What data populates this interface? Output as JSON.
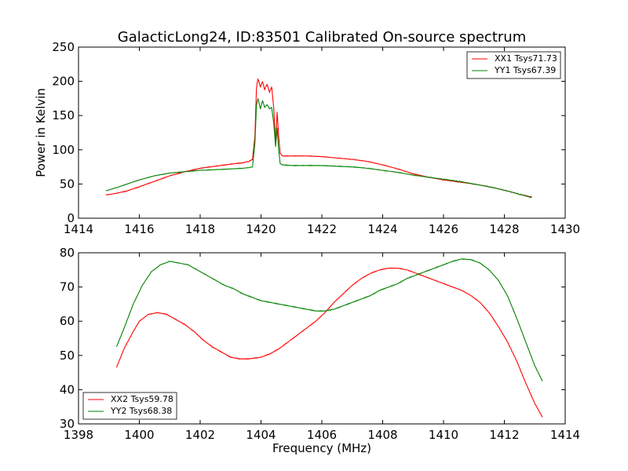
{
  "chart_data": [
    {
      "type": "line",
      "title": "GalacticLong24, ID:83501 Calibrated On-source spectrum",
      "xlabel": "",
      "ylabel": "Power in Kelvin",
      "xlim": [
        1414,
        1430
      ],
      "ylim": [
        0,
        250
      ],
      "xticks": [
        1414,
        1416,
        1418,
        1420,
        1422,
        1424,
        1426,
        1428,
        1430
      ],
      "yticks": [
        0,
        50,
        100,
        150,
        200,
        250
      ],
      "legend": "top-right",
      "series": [
        {
          "name": "XX1 Tsys71.73",
          "color": "#ff0000",
          "points": [
            [
              1414.9,
              34
            ],
            [
              1415.2,
              36
            ],
            [
              1415.6,
              40
            ],
            [
              1416.0,
              46
            ],
            [
              1416.5,
              54
            ],
            [
              1417.0,
              62
            ],
            [
              1417.5,
              68
            ],
            [
              1418.0,
              73
            ],
            [
              1418.5,
              76
            ],
            [
              1419.0,
              79
            ],
            [
              1419.4,
              81
            ],
            [
              1419.6,
              83
            ],
            [
              1419.72,
              86
            ],
            [
              1419.8,
              120
            ],
            [
              1419.85,
              190
            ],
            [
              1419.9,
              204
            ],
            [
              1419.98,
              192
            ],
            [
              1420.05,
              200
            ],
            [
              1420.12,
              188
            ],
            [
              1420.2,
              196
            ],
            [
              1420.28,
              184
            ],
            [
              1420.35,
              192
            ],
            [
              1420.42,
              160
            ],
            [
              1420.48,
              110
            ],
            [
              1420.53,
              155
            ],
            [
              1420.58,
              120
            ],
            [
              1420.63,
              95
            ],
            [
              1420.7,
              91
            ],
            [
              1421.0,
              91
            ],
            [
              1421.5,
              91
            ],
            [
              1422.0,
              90
            ],
            [
              1422.5,
              88
            ],
            [
              1423.0,
              86
            ],
            [
              1423.5,
              83
            ],
            [
              1424.0,
              78
            ],
            [
              1424.5,
              72
            ],
            [
              1425.0,
              65
            ],
            [
              1425.5,
              60
            ],
            [
              1426.0,
              56
            ],
            [
              1426.5,
              53
            ],
            [
              1427.0,
              50
            ],
            [
              1427.5,
              46
            ],
            [
              1428.0,
              41
            ],
            [
              1428.5,
              35
            ],
            [
              1428.9,
              31
            ]
          ]
        },
        {
          "name": "YY1 Tsys67.39",
          "color": "#008000",
          "points": [
            [
              1414.9,
              40
            ],
            [
              1415.2,
              44
            ],
            [
              1415.6,
              50
            ],
            [
              1416.0,
              56
            ],
            [
              1416.5,
              62
            ],
            [
              1417.0,
              66
            ],
            [
              1417.5,
              68
            ],
            [
              1418.0,
              70
            ],
            [
              1418.5,
              71
            ],
            [
              1419.0,
              72
            ],
            [
              1419.4,
              73
            ],
            [
              1419.6,
              74
            ],
            [
              1419.72,
              75
            ],
            [
              1419.8,
              110
            ],
            [
              1419.85,
              165
            ],
            [
              1419.9,
              175
            ],
            [
              1419.98,
              160
            ],
            [
              1420.05,
              172
            ],
            [
              1420.12,
              162
            ],
            [
              1420.2,
              166
            ],
            [
              1420.28,
              160
            ],
            [
              1420.35,
              162
            ],
            [
              1420.42,
              138
            ],
            [
              1420.48,
              105
            ],
            [
              1420.53,
              132
            ],
            [
              1420.58,
              100
            ],
            [
              1420.63,
              80
            ],
            [
              1420.7,
              78
            ],
            [
              1421.0,
              77
            ],
            [
              1421.5,
              77
            ],
            [
              1422.0,
              77
            ],
            [
              1422.5,
              76
            ],
            [
              1423.0,
              75
            ],
            [
              1423.5,
              73
            ],
            [
              1424.0,
              70
            ],
            [
              1424.5,
              67
            ],
            [
              1425.0,
              63
            ],
            [
              1425.5,
              60
            ],
            [
              1426.0,
              57
            ],
            [
              1426.5,
              54
            ],
            [
              1427.0,
              50
            ],
            [
              1427.5,
              46
            ],
            [
              1428.0,
              41
            ],
            [
              1428.5,
              35
            ],
            [
              1428.9,
              30
            ]
          ]
        }
      ]
    },
    {
      "type": "line",
      "title": "",
      "xlabel": "Frequency (MHz)",
      "ylabel": "",
      "xlim": [
        1398,
        1414
      ],
      "ylim": [
        30,
        80
      ],
      "xticks": [
        1398,
        1400,
        1402,
        1404,
        1406,
        1408,
        1410,
        1412,
        1414
      ],
      "yticks": [
        30,
        40,
        50,
        60,
        70,
        80
      ],
      "legend": "bottom-left",
      "series": [
        {
          "name": "XX2 Tsys59.78",
          "color": "#ff0000",
          "points": [
            [
              1399.25,
              46.5
            ],
            [
              1399.5,
              52
            ],
            [
              1399.8,
              57
            ],
            [
              1400.0,
              60
            ],
            [
              1400.3,
              62
            ],
            [
              1400.6,
              62.5
            ],
            [
              1400.9,
              62
            ],
            [
              1401.2,
              60.5
            ],
            [
              1401.5,
              59
            ],
            [
              1401.8,
              57
            ],
            [
              1402.1,
              54.5
            ],
            [
              1402.4,
              52.5
            ],
            [
              1402.7,
              51
            ],
            [
              1403.0,
              49.5
            ],
            [
              1403.3,
              49
            ],
            [
              1403.6,
              49
            ],
            [
              1404.0,
              49.5
            ],
            [
              1404.3,
              50.5
            ],
            [
              1404.6,
              52
            ],
            [
              1404.9,
              54
            ],
            [
              1405.2,
              56
            ],
            [
              1405.5,
              58
            ],
            [
              1405.8,
              60
            ],
            [
              1406.1,
              62.5
            ],
            [
              1406.4,
              65.5
            ],
            [
              1406.7,
              68
            ],
            [
              1407.0,
              70.5
            ],
            [
              1407.3,
              72.5
            ],
            [
              1407.6,
              74
            ],
            [
              1407.9,
              75
            ],
            [
              1408.2,
              75.5
            ],
            [
              1408.5,
              75.5
            ],
            [
              1408.8,
              75
            ],
            [
              1409.1,
              74
            ],
            [
              1409.4,
              73
            ],
            [
              1409.7,
              72
            ],
            [
              1410.0,
              71
            ],
            [
              1410.3,
              70
            ],
            [
              1410.6,
              69
            ],
            [
              1410.9,
              67.5
            ],
            [
              1411.2,
              65.5
            ],
            [
              1411.5,
              62.5
            ],
            [
              1411.8,
              58.5
            ],
            [
              1412.1,
              54
            ],
            [
              1412.4,
              48.5
            ],
            [
              1412.7,
              42
            ],
            [
              1413.0,
              36
            ],
            [
              1413.25,
              32
            ]
          ]
        },
        {
          "name": "YY2 Tsys68.38",
          "color": "#008000",
          "points": [
            [
              1399.25,
              52.5
            ],
            [
              1399.5,
              58
            ],
            [
              1399.8,
              65
            ],
            [
              1400.1,
              70.5
            ],
            [
              1400.4,
              74.5
            ],
            [
              1400.7,
              76.5
            ],
            [
              1401.0,
              77.5
            ],
            [
              1401.3,
              77
            ],
            [
              1401.6,
              76.5
            ],
            [
              1401.9,
              75
            ],
            [
              1402.2,
              73.5
            ],
            [
              1402.5,
              72
            ],
            [
              1402.8,
              70.5
            ],
            [
              1403.1,
              69.5
            ],
            [
              1403.4,
              68
            ],
            [
              1403.7,
              67
            ],
            [
              1404.0,
              66
            ],
            [
              1404.3,
              65.5
            ],
            [
              1404.6,
              65
            ],
            [
              1404.9,
              64.5
            ],
            [
              1405.2,
              64
            ],
            [
              1405.5,
              63.5
            ],
            [
              1405.8,
              63
            ],
            [
              1406.1,
              63
            ],
            [
              1406.4,
              63.5
            ],
            [
              1406.7,
              64.5
            ],
            [
              1407.0,
              65.5
            ],
            [
              1407.3,
              66.5
            ],
            [
              1407.6,
              67.5
            ],
            [
              1407.9,
              69
            ],
            [
              1408.2,
              70
            ],
            [
              1408.5,
              71
            ],
            [
              1408.8,
              72.5
            ],
            [
              1409.1,
              73.5
            ],
            [
              1409.4,
              74.5
            ],
            [
              1409.7,
              75.5
            ],
            [
              1410.0,
              76.5
            ],
            [
              1410.3,
              77.5
            ],
            [
              1410.6,
              78.2
            ],
            [
              1410.9,
              78
            ],
            [
              1411.2,
              77
            ],
            [
              1411.5,
              75
            ],
            [
              1411.8,
              72
            ],
            [
              1412.1,
              67.5
            ],
            [
              1412.4,
              61
            ],
            [
              1412.7,
              54
            ],
            [
              1413.0,
              47
            ],
            [
              1413.25,
              42.5
            ]
          ]
        }
      ]
    }
  ]
}
